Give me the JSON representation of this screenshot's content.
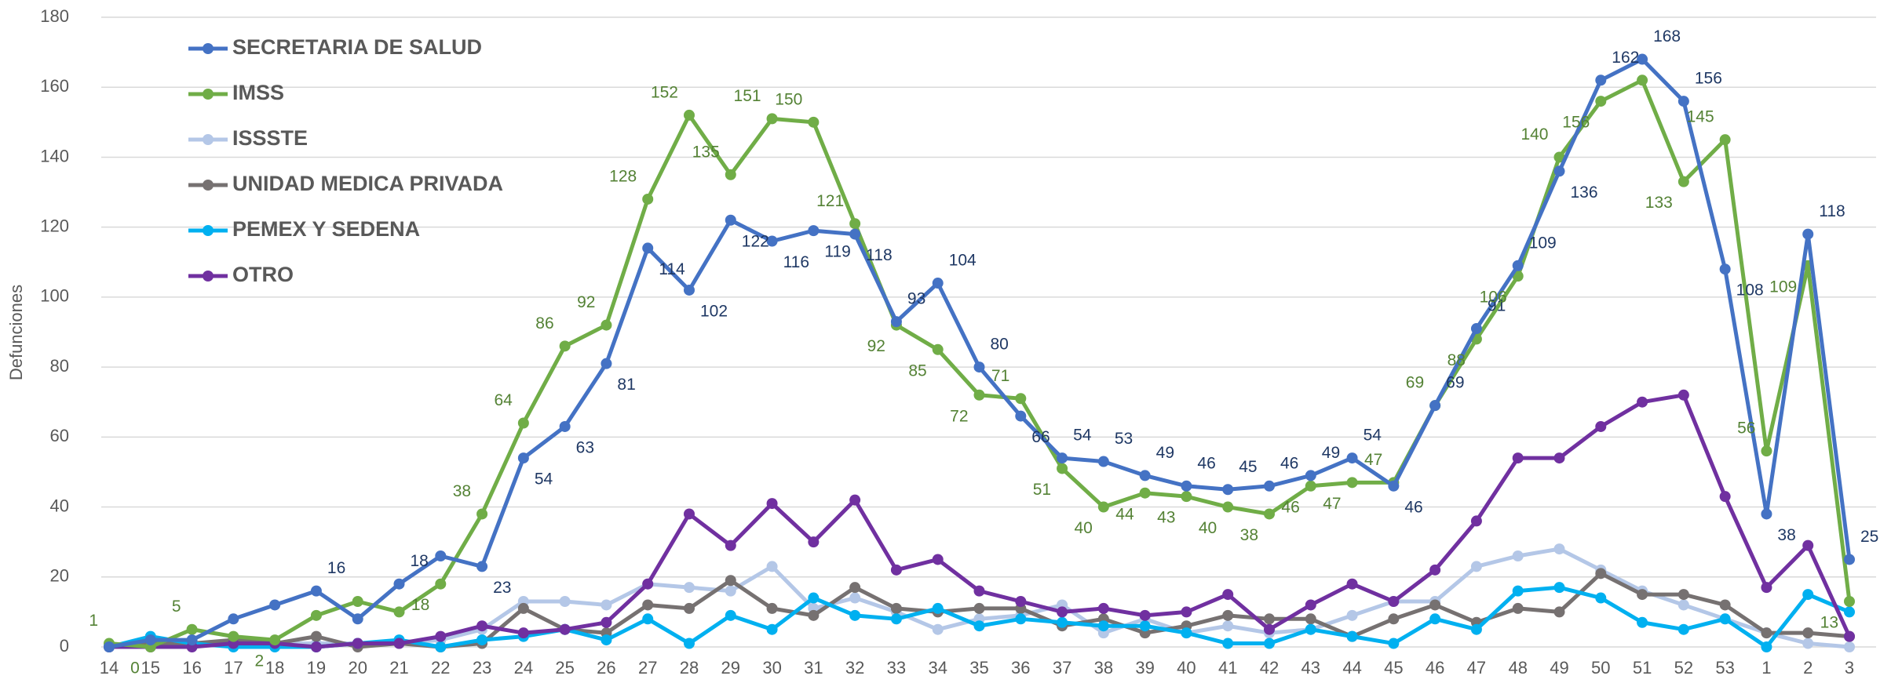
{
  "chart_data": {
    "type": "line",
    "y_label": "Defunciones",
    "categories": [
      "14",
      "15",
      "16",
      "17",
      "18",
      "19",
      "20",
      "21",
      "22",
      "23",
      "24",
      "25",
      "26",
      "27",
      "28",
      "29",
      "30",
      "31",
      "32",
      "33",
      "34",
      "35",
      "36",
      "37",
      "38",
      "39",
      "40",
      "41",
      "42",
      "43",
      "44",
      "45",
      "46",
      "47",
      "48",
      "49",
      "50",
      "51",
      "52",
      "53",
      "1",
      "2",
      "3"
    ],
    "ylim": [
      0,
      180
    ],
    "yticks": [
      0,
      20,
      40,
      60,
      80,
      100,
      120,
      140,
      160,
      180
    ],
    "grid": true,
    "series": [
      {
        "name": "SECRETARIA DE SALUD",
        "color": "#4472c4",
        "label_color": "#1f3864",
        "values": [
          0,
          2,
          2,
          8,
          12,
          16,
          8,
          18,
          26,
          23,
          54,
          63,
          81,
          114,
          102,
          122,
          116,
          119,
          118,
          93,
          104,
          80,
          66,
          54,
          53,
          49,
          46,
          45,
          46,
          49,
          54,
          46,
          69,
          91,
          109,
          136,
          162,
          168,
          156,
          108,
          38,
          118,
          25
        ],
        "value_labels": [
          null,
          null,
          null,
          null,
          null,
          16,
          null,
          18,
          null,
          23,
          54,
          63,
          81,
          114,
          102,
          122,
          116,
          119,
          118,
          93,
          104,
          80,
          66,
          54,
          53,
          49,
          46,
          45,
          46,
          49,
          54,
          46,
          69,
          91,
          109,
          136,
          162,
          168,
          156,
          108,
          38,
          118,
          25
        ]
      },
      {
        "name": "IMSS",
        "color": "#70ad47",
        "label_color": "#548235",
        "values": [
          1,
          0,
          5,
          3,
          2,
          9,
          13,
          10,
          18,
          38,
          64,
          86,
          92,
          128,
          152,
          135,
          151,
          150,
          121,
          92,
          85,
          72,
          71,
          51,
          40,
          44,
          43,
          40,
          38,
          46,
          47,
          47,
          69,
          88,
          106,
          140,
          156,
          162,
          133,
          145,
          56,
          109,
          13
        ],
        "value_labels": [
          1,
          0,
          5,
          null,
          2,
          null,
          null,
          null,
          18,
          38,
          64,
          86,
          92,
          128,
          152,
          135,
          151,
          150,
          121,
          92,
          85,
          72,
          71,
          51,
          40,
          44,
          43,
          40,
          38,
          46,
          47,
          47,
          69,
          88,
          106,
          140,
          156,
          null,
          133,
          145,
          56,
          109,
          13
        ]
      },
      {
        "name": "ISSSTE",
        "color": "#b4c7e7",
        "values": [
          0,
          1,
          1,
          1,
          1,
          1,
          1,
          1,
          2,
          5,
          13,
          13,
          12,
          18,
          17,
          16,
          23,
          11,
          14,
          10,
          5,
          8,
          9,
          12,
          4,
          8,
          4,
          6,
          4,
          5,
          9,
          13,
          13,
          23,
          26,
          28,
          22,
          16,
          12,
          8,
          4,
          1,
          0
        ]
      },
      {
        "name": "UNIDAD MEDICA PRIVADA",
        "color": "#767171",
        "values": [
          0,
          1,
          1,
          2,
          1,
          3,
          0,
          1,
          0,
          1,
          11,
          5,
          4,
          12,
          11,
          19,
          11,
          9,
          17,
          11,
          10,
          11,
          11,
          6,
          8,
          4,
          6,
          9,
          8,
          8,
          3,
          8,
          12,
          7,
          11,
          10,
          21,
          15,
          15,
          12,
          4,
          4,
          3
        ]
      },
      {
        "name": "PEMEX Y SEDENA",
        "color": "#00b0f0",
        "values": [
          0,
          3,
          1,
          0,
          0,
          0,
          1,
          2,
          0,
          2,
          3,
          5,
          2,
          8,
          1,
          9,
          5,
          14,
          9,
          8,
          11,
          6,
          8,
          7,
          6,
          6,
          4,
          1,
          1,
          5,
          3,
          1,
          8,
          5,
          16,
          17,
          14,
          7,
          5,
          8,
          0,
          15,
          10
        ]
      },
      {
        "name": "OTRO",
        "color": "#7030a0",
        "values": [
          0,
          0,
          0,
          1,
          1,
          0,
          1,
          1,
          3,
          6,
          4,
          5,
          7,
          18,
          38,
          29,
          41,
          30,
          42,
          22,
          25,
          16,
          13,
          10,
          11,
          9,
          10,
          15,
          5,
          12,
          18,
          13,
          22,
          36,
          54,
          54,
          63,
          70,
          72,
          43,
          17,
          29,
          3
        ]
      }
    ]
  }
}
